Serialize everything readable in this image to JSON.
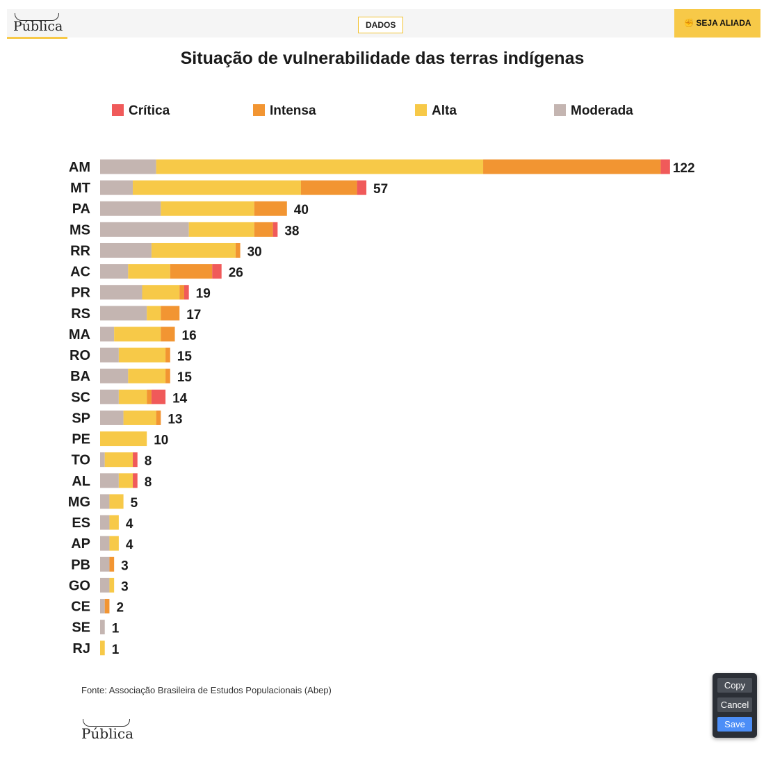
{
  "header": {
    "logo_text": "Pública",
    "nav_button": "DADOS",
    "cta_icon": "✊",
    "cta_label": "SEJA ALIADA",
    "accent_color": "#f7c948"
  },
  "legend": [
    {
      "name": "Crítica",
      "color": "#f05a5a"
    },
    {
      "name": "Intensa",
      "color": "#f29532"
    },
    {
      "name": "Alta",
      "color": "#f7c948"
    },
    {
      "name": "Moderada",
      "color": "#c4b5b1"
    }
  ],
  "chart_data": {
    "type": "bar",
    "orientation": "horizontal",
    "stacked": true,
    "title": "Situação de vulnerabilidade das terras indígenas",
    "legend_position": "top",
    "grid": false,
    "categories": [
      "AM",
      "MT",
      "PA",
      "MS",
      "RR",
      "AC",
      "PR",
      "RS",
      "MA",
      "RO",
      "BA",
      "SC",
      "SP",
      "PE",
      "TO",
      "AL",
      "MG",
      "ES",
      "AP",
      "PB",
      "GO",
      "CE",
      "SE",
      "RJ"
    ],
    "totals": [
      122,
      57,
      40,
      38,
      30,
      26,
      19,
      17,
      16,
      15,
      15,
      14,
      13,
      10,
      8,
      8,
      5,
      4,
      4,
      3,
      3,
      2,
      1,
      1
    ],
    "series": [
      {
        "name": "Moderada",
        "color": "#c4b5b1",
        "values": [
          12,
          7,
          13,
          19,
          11,
          6,
          9,
          10,
          3,
          4,
          6,
          4,
          5,
          0,
          1,
          4,
          2,
          2,
          2,
          2,
          2,
          1,
          1,
          0
        ]
      },
      {
        "name": "Alta",
        "color": "#f7c948",
        "values": [
          70,
          36,
          20,
          14,
          18,
          9,
          8,
          3,
          10,
          10,
          8,
          6,
          7,
          10,
          6,
          3,
          3,
          2,
          2,
          0,
          1,
          0,
          0,
          1
        ]
      },
      {
        "name": "Intensa",
        "color": "#f29532",
        "values": [
          38,
          12,
          7,
          4,
          1,
          9,
          1,
          4,
          3,
          1,
          1,
          1,
          1,
          0,
          0,
          0,
          0,
          0,
          0,
          1,
          0,
          1,
          0,
          0
        ]
      },
      {
        "name": "Crítica",
        "color": "#f05a5a",
        "values": [
          2,
          2,
          0,
          1,
          0,
          2,
          1,
          0,
          0,
          0,
          0,
          3,
          0,
          0,
          1,
          1,
          0,
          0,
          0,
          0,
          0,
          0,
          0,
          0
        ]
      }
    ]
  },
  "source": "Fonte: Associação Brasileira de Estudos Populacionais (Abep)",
  "footer": {
    "logo_text": "Pública"
  },
  "edit_panel": {
    "copy_label": "Copy",
    "cancel_label": "Cancel",
    "save_label": "Save"
  }
}
